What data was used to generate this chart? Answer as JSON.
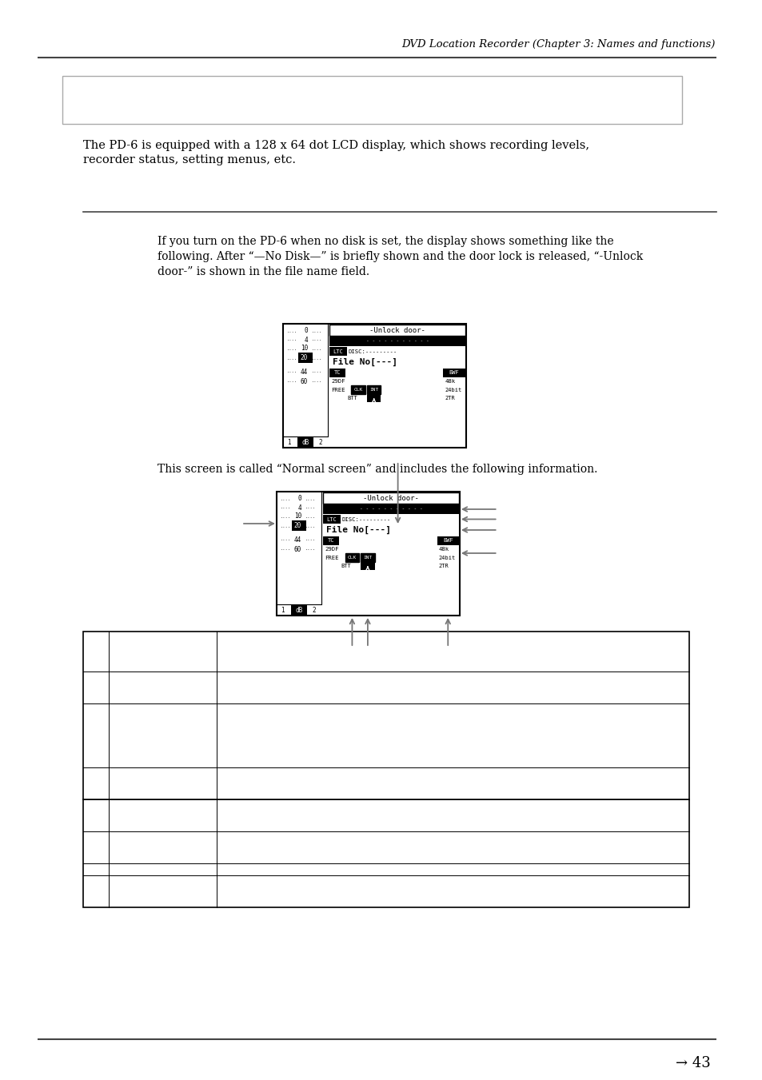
{
  "title_italic": "DVD Location Recorder (Chapter 3: Names and functions)",
  "body_text_1": "The PD-6 is equipped with a 128 x 64 dot LCD display, which shows recording levels,\nrecorder status, setting menus, etc.",
  "para_text_line1": "If you turn on the PD-6 when no disk is set, the display shows something like the",
  "para_text_line2": "following. After “—No Disk—” is briefly shown and the door lock is released, “-Unlock",
  "para_text_line3": "door-” is shown in the file name field.",
  "normal_screen_text": "This screen is called “Normal screen” and includes the following information.",
  "page_number": "43",
  "bg": "#ffffff",
  "black": "#000000",
  "darkgray": "#444444",
  "medgray": "#888888",
  "lightgray": "#cccccc"
}
